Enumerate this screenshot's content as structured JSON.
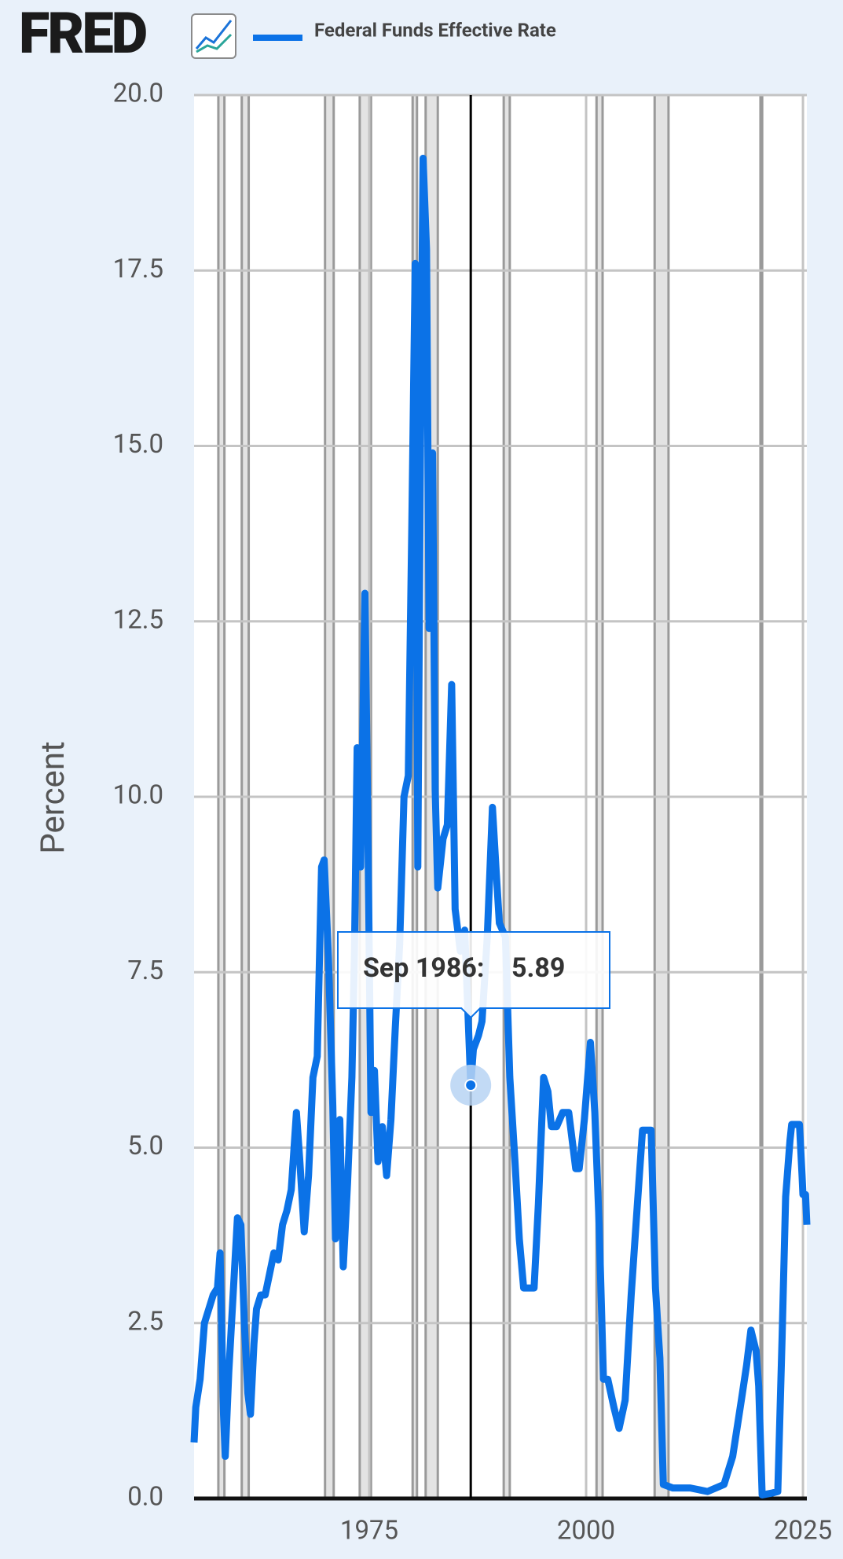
{
  "brand": "FRED",
  "chart_data": {
    "type": "line",
    "y_label": "Percent",
    "x": [
      1954.8,
      1955.0,
      1955.5,
      1956.0,
      1956.5,
      1957.0,
      1957.5,
      1957.8,
      1958.2,
      1958.4,
      1958.8,
      1959.3,
      1959.8,
      1960.2,
      1960.6,
      1961.0,
      1961.3,
      1961.7,
      1962.0,
      1962.5,
      1963.0,
      1963.5,
      1964.0,
      1964.5,
      1965.0,
      1965.5,
      1966.0,
      1966.6,
      1967.0,
      1967.5,
      1968.0,
      1968.5,
      1969.0,
      1969.5,
      1969.8,
      1970.3,
      1970.8,
      1971.1,
      1971.6,
      1972.0,
      1972.5,
      1973.0,
      1973.3,
      1973.6,
      1974.0,
      1974.5,
      1974.8,
      1975.2,
      1975.6,
      1976.0,
      1976.5,
      1977.0,
      1977.5,
      1978.0,
      1978.5,
      1979.0,
      1979.5,
      1979.9,
      1980.3,
      1980.6,
      1980.9,
      1981.2,
      1981.6,
      1981.9,
      1982.3,
      1982.6,
      1982.9,
      1983.5,
      1984.0,
      1984.5,
      1984.9,
      1985.5,
      1986.0,
      1986.7,
      1987.0,
      1987.6,
      1988.0,
      1988.6,
      1989.2,
      1989.6,
      1990.0,
      1990.7,
      1991.2,
      1991.8,
      1992.3,
      1992.8,
      1993.5,
      1994.0,
      1994.5,
      1995.1,
      1995.6,
      1996.0,
      1996.6,
      1997.3,
      1998.0,
      1998.8,
      1999.2,
      1999.8,
      2000.5,
      2001.0,
      2001.5,
      2002.0,
      2002.5,
      2003.2,
      2003.8,
      2004.5,
      2005.2,
      2005.8,
      2006.5,
      2007.5,
      2008.0,
      2008.5,
      2008.9,
      2010.0,
      2012.0,
      2014.0,
      2015.9,
      2016.9,
      2017.9,
      2018.5,
      2019.0,
      2019.6,
      2019.9,
      2020.3,
      2021.5,
      2022.1,
      2022.6,
      2023.0,
      2023.5,
      2023.7,
      2024.6,
      2024.9,
      2025.0,
      2025.3,
      2025.45
    ],
    "series": [
      {
        "name": "Federal Funds Effective Rate",
        "color": "#0b72e7",
        "values": [
          0.8,
          1.3,
          1.7,
          2.5,
          2.7,
          2.9,
          3.0,
          3.5,
          1.2,
          0.6,
          1.8,
          2.9,
          4.0,
          3.9,
          2.5,
          1.5,
          1.2,
          2.2,
          2.7,
          2.9,
          2.9,
          3.2,
          3.5,
          3.4,
          3.9,
          4.1,
          4.4,
          5.5,
          4.8,
          3.8,
          4.6,
          6.0,
          6.3,
          9.0,
          9.1,
          7.7,
          5.6,
          3.7,
          5.4,
          3.3,
          4.5,
          6.0,
          7.8,
          10.7,
          9.0,
          12.9,
          10.0,
          5.5,
          6.1,
          4.8,
          5.3,
          4.6,
          5.4,
          6.7,
          7.9,
          10.0,
          10.3,
          13.8,
          17.6,
          9.0,
          15.0,
          19.1,
          17.8,
          12.4,
          14.9,
          10.1,
          8.7,
          9.4,
          9.6,
          11.6,
          8.4,
          7.8,
          8.1,
          5.89,
          6.4,
          6.6,
          6.8,
          8.0,
          9.85,
          9.0,
          8.2,
          8.0,
          6.0,
          4.8,
          3.7,
          3.0,
          3.0,
          3.0,
          4.2,
          6.0,
          5.8,
          5.3,
          5.3,
          5.5,
          5.5,
          4.7,
          4.7,
          5.4,
          6.5,
          5.5,
          3.9,
          1.7,
          1.7,
          1.3,
          1.0,
          1.4,
          2.9,
          4.0,
          5.25,
          5.25,
          3.0,
          2.0,
          0.2,
          0.15,
          0.15,
          0.1,
          0.2,
          0.6,
          1.4,
          1.9,
          2.4,
          2.1,
          1.6,
          0.05,
          0.08,
          0.1,
          2.3,
          4.3,
          5.1,
          5.33,
          5.33,
          4.6,
          4.33,
          4.33,
          3.9
        ]
      }
    ],
    "recessions": [
      [
        1957.6,
        1958.3
      ],
      [
        1960.3,
        1961.1
      ],
      [
        1969.9,
        1970.9
      ],
      [
        1973.9,
        1975.2
      ],
      [
        1980.0,
        1980.5
      ],
      [
        1981.5,
        1982.9
      ],
      [
        1990.5,
        1991.2
      ],
      [
        2001.2,
        2001.9
      ],
      [
        2007.9,
        2009.5
      ],
      [
        2020.1,
        2020.3
      ]
    ],
    "xlim": [
      1954.8,
      2025.45
    ],
    "ylim": [
      0,
      20
    ],
    "xticks": [
      1975,
      2000,
      2025
    ],
    "yticks": [
      {
        "value": 0,
        "label": "0.0"
      },
      2.5,
      {
        "value": 5,
        "label": "5.0"
      },
      7.5,
      {
        "value": 10,
        "label": "10.0"
      },
      12.5,
      {
        "value": 15,
        "label": "15.0"
      },
      17.5,
      {
        "value": 20,
        "label": "20.0"
      }
    ],
    "grid": true,
    "tooltip": {
      "label": "Sep 1986:",
      "x": 1986.7,
      "value": 5.89
    }
  }
}
